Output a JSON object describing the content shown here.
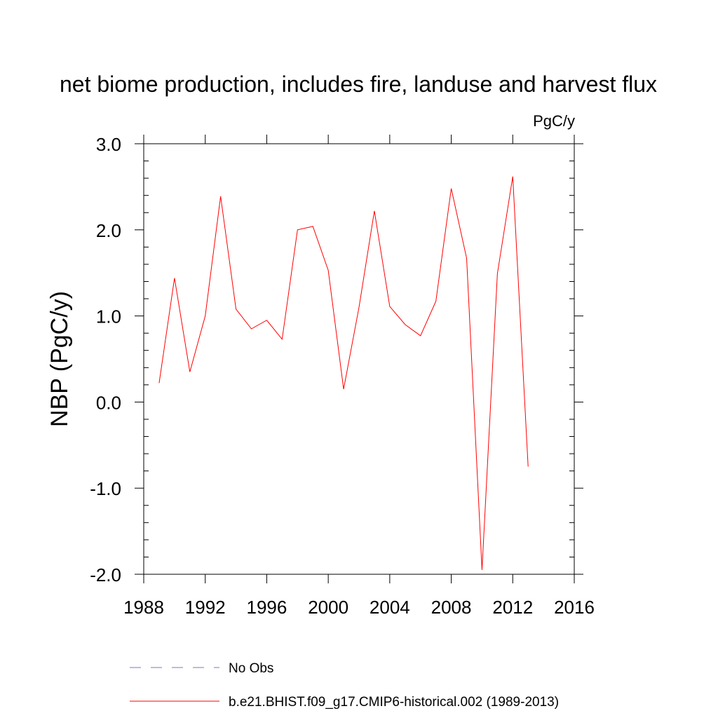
{
  "chart_data": {
    "type": "line",
    "title": "net biome production, includes fire, landuse and harvest flux",
    "units": "PgC/y",
    "ylabel": "NBP  (PgC/y)",
    "xlabel": "",
    "xlim": [
      1988,
      2016
    ],
    "ylim": [
      -2.0,
      3.0
    ],
    "x_ticks": [
      1988,
      1992,
      1996,
      2000,
      2004,
      2008,
      2012,
      2016
    ],
    "x_tick_labels": [
      "1988",
      "1992",
      "1996",
      "2000",
      "2004",
      "2008",
      "2012",
      "2016"
    ],
    "y_ticks": [
      -2.0,
      -1.0,
      0.0,
      1.0,
      2.0,
      3.0
    ],
    "y_tick_labels": [
      "-2.0",
      "-1.0",
      "0.0",
      "1.0",
      "2.0",
      "3.0"
    ],
    "series": [
      {
        "name": "b.e21.BHIST.f09_g17.CMIP6-historical.002 (1989-2013)",
        "color": "#ff0000",
        "dash": "solid",
        "x": [
          1989,
          1990,
          1991,
          1992,
          1993,
          1994,
          1995,
          1996,
          1997,
          1998,
          1999,
          2000,
          2001,
          2002,
          2003,
          2004,
          2005,
          2006,
          2007,
          2008,
          2009,
          2010,
          2011,
          2012,
          2013
        ],
        "values": [
          0.22,
          1.44,
          0.35,
          1.0,
          2.39,
          1.08,
          0.85,
          0.95,
          0.73,
          2.0,
          2.04,
          1.53,
          0.15,
          1.1,
          2.22,
          1.11,
          0.9,
          0.77,
          1.17,
          2.48,
          1.67,
          -1.95,
          1.49,
          2.62,
          -0.75
        ]
      }
    ],
    "legend": [
      {
        "label": "No Obs",
        "color": "#7b74c9",
        "dash": "dashed"
      },
      {
        "label": "b.e21.BHIST.f09_g17.CMIP6-historical.002 (1989-2013)",
        "color": "#ff0000",
        "dash": "solid"
      }
    ]
  }
}
